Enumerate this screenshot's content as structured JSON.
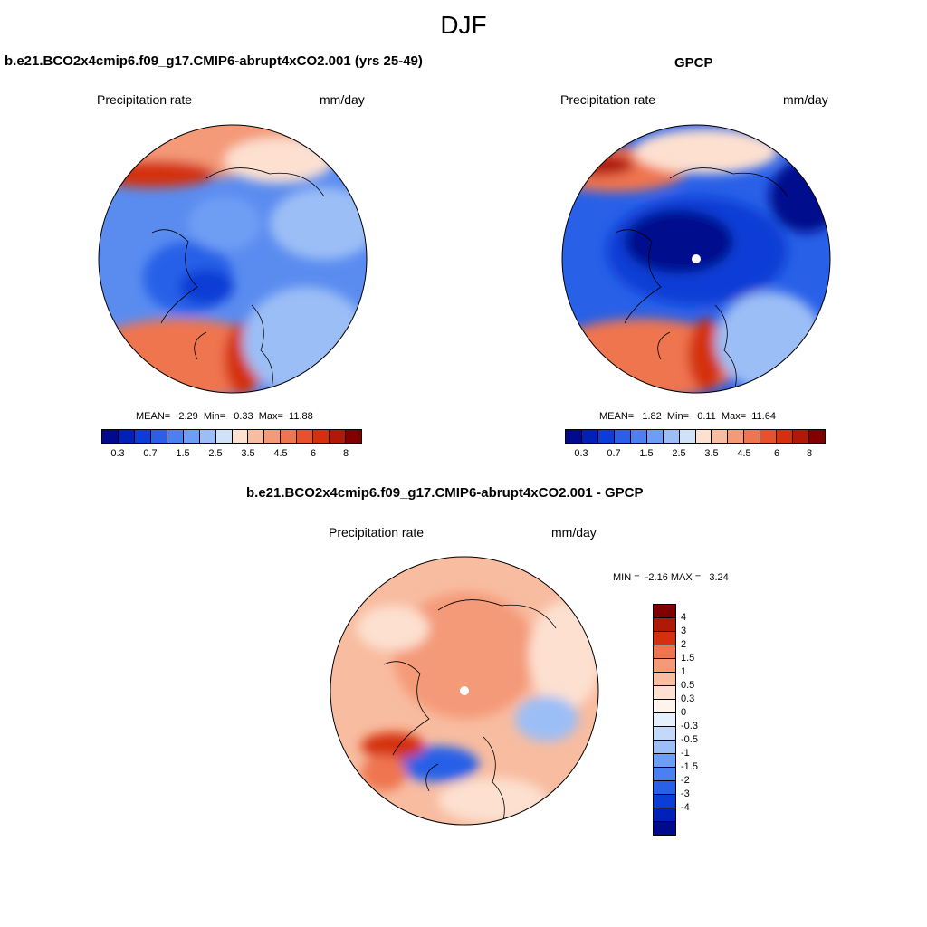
{
  "title": "DJF",
  "panels": {
    "model": {
      "title": "b.e21.BCO2x4cmip6.f09_g17.CMIP6-abrupt4xCO2.001 (yrs 25-49)",
      "left_label": "Precipitation rate",
      "right_label": "mm/day",
      "stats": "MEAN=   2.29  Min=   0.33  Max=  11.88",
      "mean": 2.29,
      "min": 0.33,
      "max": 11.88
    },
    "obs": {
      "title": "GPCP",
      "left_label": "Precipitation rate",
      "right_label": "mm/day",
      "stats": "MEAN=   1.82  Min=   0.11  Max=  11.64",
      "mean": 1.82,
      "min": 0.11,
      "max": 11.64
    },
    "diff": {
      "title": "b.e21.BCO2x4cmip6.f09_g17.CMIP6-abrupt4xCO2.001 - GPCP",
      "left_label": "Precipitation rate",
      "right_label": "mm/day",
      "stats": "MIN =  -2.16 MAX =   3.24",
      "min": -2.16,
      "max": 3.24
    }
  },
  "colorbar_abs": {
    "colors": [
      "#000a8c",
      "#0020b8",
      "#0a3ed6",
      "#2860e8",
      "#4a80f0",
      "#6e9ef4",
      "#9cbef6",
      "#cfe2f8",
      "#fde0d0",
      "#f8bca0",
      "#f49a78",
      "#ef7450",
      "#e8502e",
      "#d43010",
      "#b01808",
      "#800000"
    ],
    "ticks": [
      "0.3",
      "0.7",
      "1.5",
      "2.5",
      "3.5",
      "4.5",
      "6",
      "8"
    ]
  },
  "colorbar_diff": {
    "colors": [
      "#800000",
      "#b01808",
      "#d43010",
      "#ef7450",
      "#f49a78",
      "#f8bca0",
      "#fde0d0",
      "#fff4ec",
      "#e6f0fc",
      "#c4d8f8",
      "#9cbef6",
      "#6e9ef4",
      "#4a80f0",
      "#2860e8",
      "#0a3ed6",
      "#0020b8",
      "#000a8c"
    ],
    "ticks": [
      "4",
      "3",
      "2",
      "1.5",
      "1",
      "0.5",
      "0.3",
      "0",
      "-0.3",
      "-0.5",
      "-1",
      "-1.5",
      "-2",
      "-3",
      "-4"
    ]
  }
}
